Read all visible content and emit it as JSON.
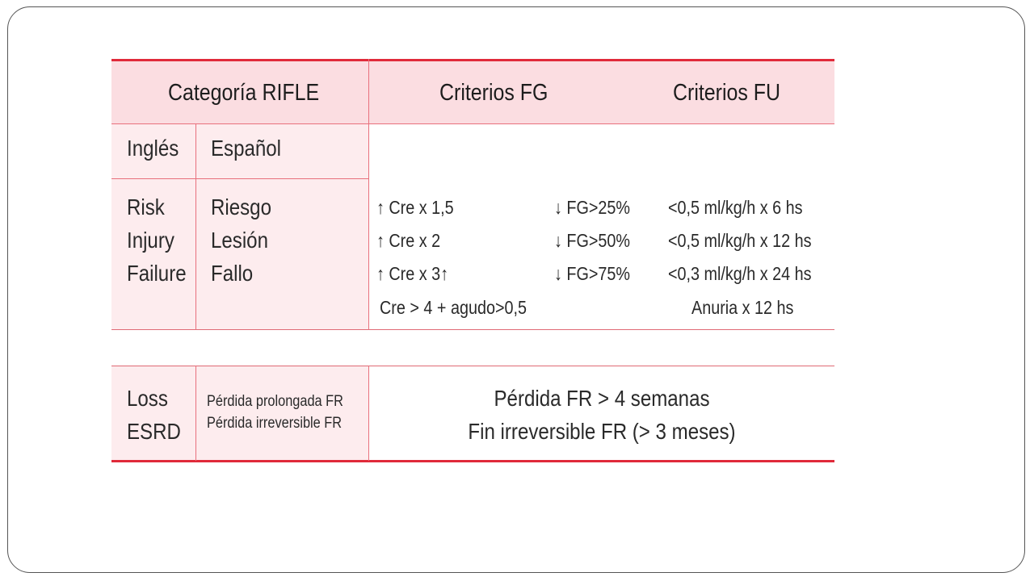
{
  "header": {
    "category": "Categoría RIFLE",
    "fg": "Criterios FG",
    "fu": "Criterios FU"
  },
  "subheader": {
    "english": "Inglés",
    "spanish": "Español"
  },
  "rows": [
    {
      "en": "Risk",
      "es": "Riesgo",
      "fg_cre": "↑ Cre x 1,5",
      "fg_pct": "↓ FG>25%",
      "fu": "<0,5 ml/kg/h x 6 hs"
    },
    {
      "en": "Injury",
      "es": "Lesión",
      "fg_cre": "↑ Cre x 2",
      "fg_pct": "↓ FG>50%",
      "fu": "<0,5 ml/kg/h x 12 hs"
    },
    {
      "en": "Failure",
      "es": "Fallo",
      "fg_cre": "↑ Cre x 3↑",
      "fg_pct": "↓ FG>75%",
      "fu": "<0,3 ml/kg/h x 24 hs"
    }
  ],
  "extra": {
    "fg": "Cre > 4 +  agudo>0,5",
    "fu": "Anuria x 12 hs"
  },
  "outcomes": {
    "en": [
      "Loss",
      "ESRD"
    ],
    "es": [
      "Pérdida prolongada FR",
      "Pérdida irreversible FR"
    ],
    "criteria": [
      "Pérdida FR > 4 semanas",
      "Fin irreversible FR (> 3 meses)"
    ]
  },
  "colors": {
    "accent_red": "#e02a3a",
    "header_pink": "#fbdde1",
    "cell_pink": "#fdecee"
  }
}
